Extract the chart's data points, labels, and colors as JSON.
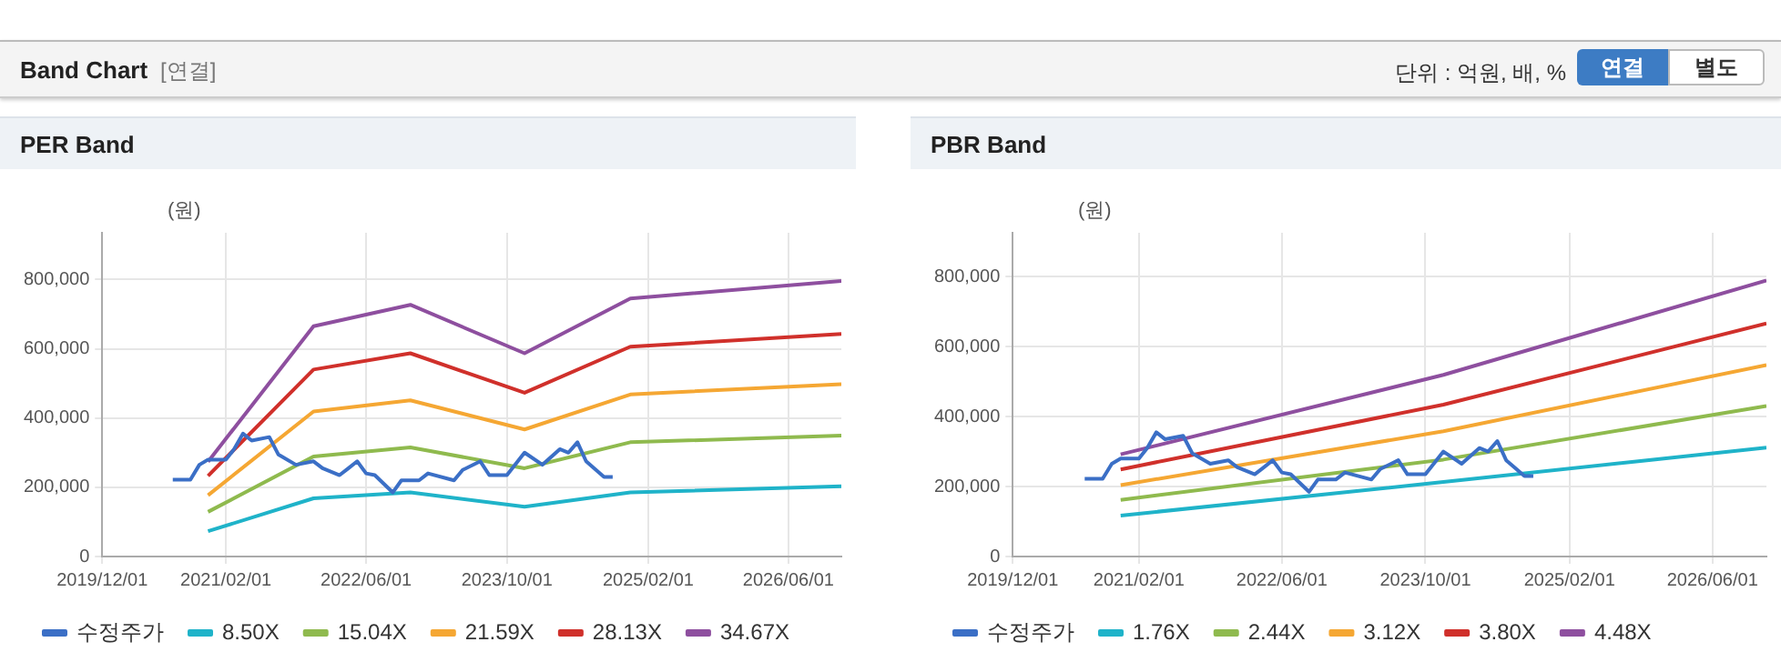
{
  "chart_data": [
    {
      "type": "other",
      "title": "Band Chart",
      "annotations": [
        "[연결]",
        "단위 : 억원, 배, %",
        "연결",
        "별도"
      ]
    },
    {
      "type": "line",
      "title": "PER Band",
      "ylabel": "(원)",
      "legend": "bottom",
      "grid": true,
      "marker": "none",
      "line_style": "solid",
      "xlim": [
        "2019-12-01",
        "2026-12-01"
      ],
      "xticks": [
        {
          "value": "2019-12-01",
          "label": "2019/12/01"
        },
        {
          "value": "2021-02-01",
          "label": "2021/02/01"
        },
        {
          "value": "2022-06-01",
          "label": "2022/06/01"
        },
        {
          "value": "2023-10-01",
          "label": "2023/10/01"
        },
        {
          "value": "2025-02-01",
          "label": "2025/02/01"
        },
        {
          "value": "2026-06-01",
          "label": "2026/06/01"
        }
      ],
      "ylim": [
        0,
        935000
      ],
      "yticks": [
        {
          "value": 0,
          "label": "0"
        },
        {
          "value": 200000,
          "label": "200,000"
        },
        {
          "value": 400000,
          "label": "400,000"
        },
        {
          "value": 600000,
          "label": "600,000"
        },
        {
          "value": 800000,
          "label": "800,000"
        }
      ],
      "series": [
        {
          "name": "수정주가",
          "color": "#3b6fc6",
          "x": [
            "2020-08",
            "2020-10",
            "2020-11",
            "2020-12",
            "2021-02",
            "2021-03",
            "2021-04",
            "2021-05",
            "2021-07",
            "2021-08",
            "2021-10",
            "2021-12",
            "2022-01",
            "2022-03",
            "2022-04",
            "2022-05",
            "2022-06",
            "2022-07",
            "2022-09",
            "2022-10",
            "2022-12",
            "2023-01",
            "2023-04",
            "2023-05",
            "2023-07",
            "2023-08",
            "2023-10",
            "2023-12",
            "2024-02",
            "2024-04",
            "2024-05",
            "2024-06",
            "2024-07",
            "2024-09",
            "2024-10"
          ],
          "values": [
            222000,
            222000,
            265000,
            280000,
            280000,
            310000,
            355000,
            335000,
            345000,
            295000,
            265000,
            275000,
            255000,
            235000,
            255000,
            275000,
            240000,
            235000,
            185000,
            220000,
            220000,
            240000,
            220000,
            250000,
            275000,
            235000,
            235000,
            300000,
            265000,
            310000,
            300000,
            330000,
            275000,
            230000,
            230000
          ]
        },
        {
          "name": "8.50X",
          "color": "#1fb3c9",
          "x": [
            "2020-12",
            "2021-12",
            "2022-11",
            "2023-12",
            "2024-12",
            "2026-12"
          ],
          "values": [
            73000,
            168000,
            185000,
            144000,
            185000,
            203000
          ]
        },
        {
          "name": "15.04X",
          "color": "#8fba4e",
          "x": [
            "2020-12",
            "2021-12",
            "2022-11",
            "2023-12",
            "2024-12",
            "2026-12"
          ],
          "values": [
            129000,
            289000,
            315000,
            255000,
            330000,
            349000
          ]
        },
        {
          "name": "21.59X",
          "color": "#f5a733",
          "x": [
            "2020-12",
            "2021-12",
            "2022-11",
            "2023-12",
            "2024-12",
            "2026-12"
          ],
          "values": [
            177000,
            419000,
            451000,
            367000,
            468000,
            498000
          ]
        },
        {
          "name": "28.13X",
          "color": "#d0302b",
          "x": [
            "2020-12",
            "2021-12",
            "2022-11",
            "2023-12",
            "2024-12",
            "2026-12"
          ],
          "values": [
            233000,
            540000,
            587000,
            473000,
            606000,
            643000
          ]
        },
        {
          "name": "34.67X",
          "color": "#8e4f9f",
          "x": [
            "2020-12",
            "2021-12",
            "2022-11",
            "2023-12",
            "2024-12",
            "2026-12"
          ],
          "values": [
            274000,
            665000,
            727000,
            587000,
            745000,
            796000
          ]
        }
      ]
    },
    {
      "type": "line",
      "title": "PBR Band",
      "ylabel": "(원)",
      "legend": "bottom",
      "grid": true,
      "marker": "none",
      "line_style": "solid",
      "xlim": [
        "2019-12-01",
        "2026-12-01"
      ],
      "xticks": [
        {
          "value": "2019-12-01",
          "label": "2019/12/01"
        },
        {
          "value": "2021-02-01",
          "label": "2021/02/01"
        },
        {
          "value": "2022-06-01",
          "label": "2022/06/01"
        },
        {
          "value": "2023-10-01",
          "label": "2023/10/01"
        },
        {
          "value": "2025-02-01",
          "label": "2025/02/01"
        },
        {
          "value": "2026-06-01",
          "label": "2026/06/01"
        }
      ],
      "ylim": [
        0,
        925000
      ],
      "yticks": [
        {
          "value": 0,
          "label": "0"
        },
        {
          "value": 200000,
          "label": "200,000"
        },
        {
          "value": 400000,
          "label": "400,000"
        },
        {
          "value": 600000,
          "label": "600,000"
        },
        {
          "value": 800000,
          "label": "800,000"
        }
      ],
      "series": [
        {
          "name": "수정주가",
          "color": "#3b6fc6",
          "x": [
            "2020-08",
            "2020-10",
            "2020-11",
            "2020-12",
            "2021-02",
            "2021-03",
            "2021-04",
            "2021-05",
            "2021-07",
            "2021-08",
            "2021-10",
            "2021-12",
            "2022-01",
            "2022-03",
            "2022-04",
            "2022-05",
            "2022-06",
            "2022-07",
            "2022-09",
            "2022-10",
            "2022-12",
            "2023-01",
            "2023-04",
            "2023-05",
            "2023-07",
            "2023-08",
            "2023-10",
            "2023-12",
            "2024-02",
            "2024-04",
            "2024-05",
            "2024-06",
            "2024-07",
            "2024-09",
            "2024-10"
          ],
          "values": [
            222000,
            222000,
            265000,
            280000,
            280000,
            310000,
            355000,
            335000,
            345000,
            295000,
            265000,
            275000,
            255000,
            235000,
            255000,
            275000,
            240000,
            235000,
            185000,
            220000,
            220000,
            240000,
            220000,
            250000,
            275000,
            235000,
            235000,
            300000,
            265000,
            310000,
            300000,
            330000,
            275000,
            230000,
            230000
          ]
        },
        {
          "name": "1.76X",
          "color": "#1fb3c9",
          "x": [
            "2020-12",
            "2023-12",
            "2026-12"
          ],
          "values": [
            117000,
            213000,
            311000
          ]
        },
        {
          "name": "2.44X",
          "color": "#8fba4e",
          "x": [
            "2020-12",
            "2023-12",
            "2026-12"
          ],
          "values": [
            162000,
            277000,
            430000
          ]
        },
        {
          "name": "3.12X",
          "color": "#f5a733",
          "x": [
            "2020-12",
            "2023-12",
            "2026-12"
          ],
          "values": [
            204000,
            358000,
            547000
          ]
        },
        {
          "name": "3.80X",
          "color": "#d0302b",
          "x": [
            "2020-12",
            "2023-12",
            "2026-12"
          ],
          "values": [
            249000,
            434000,
            666000
          ]
        },
        {
          "name": "4.48X",
          "color": "#8e4f9f",
          "x": [
            "2020-12",
            "2023-12",
            "2026-12"
          ],
          "values": [
            292000,
            519000,
            789000
          ]
        }
      ]
    }
  ]
}
